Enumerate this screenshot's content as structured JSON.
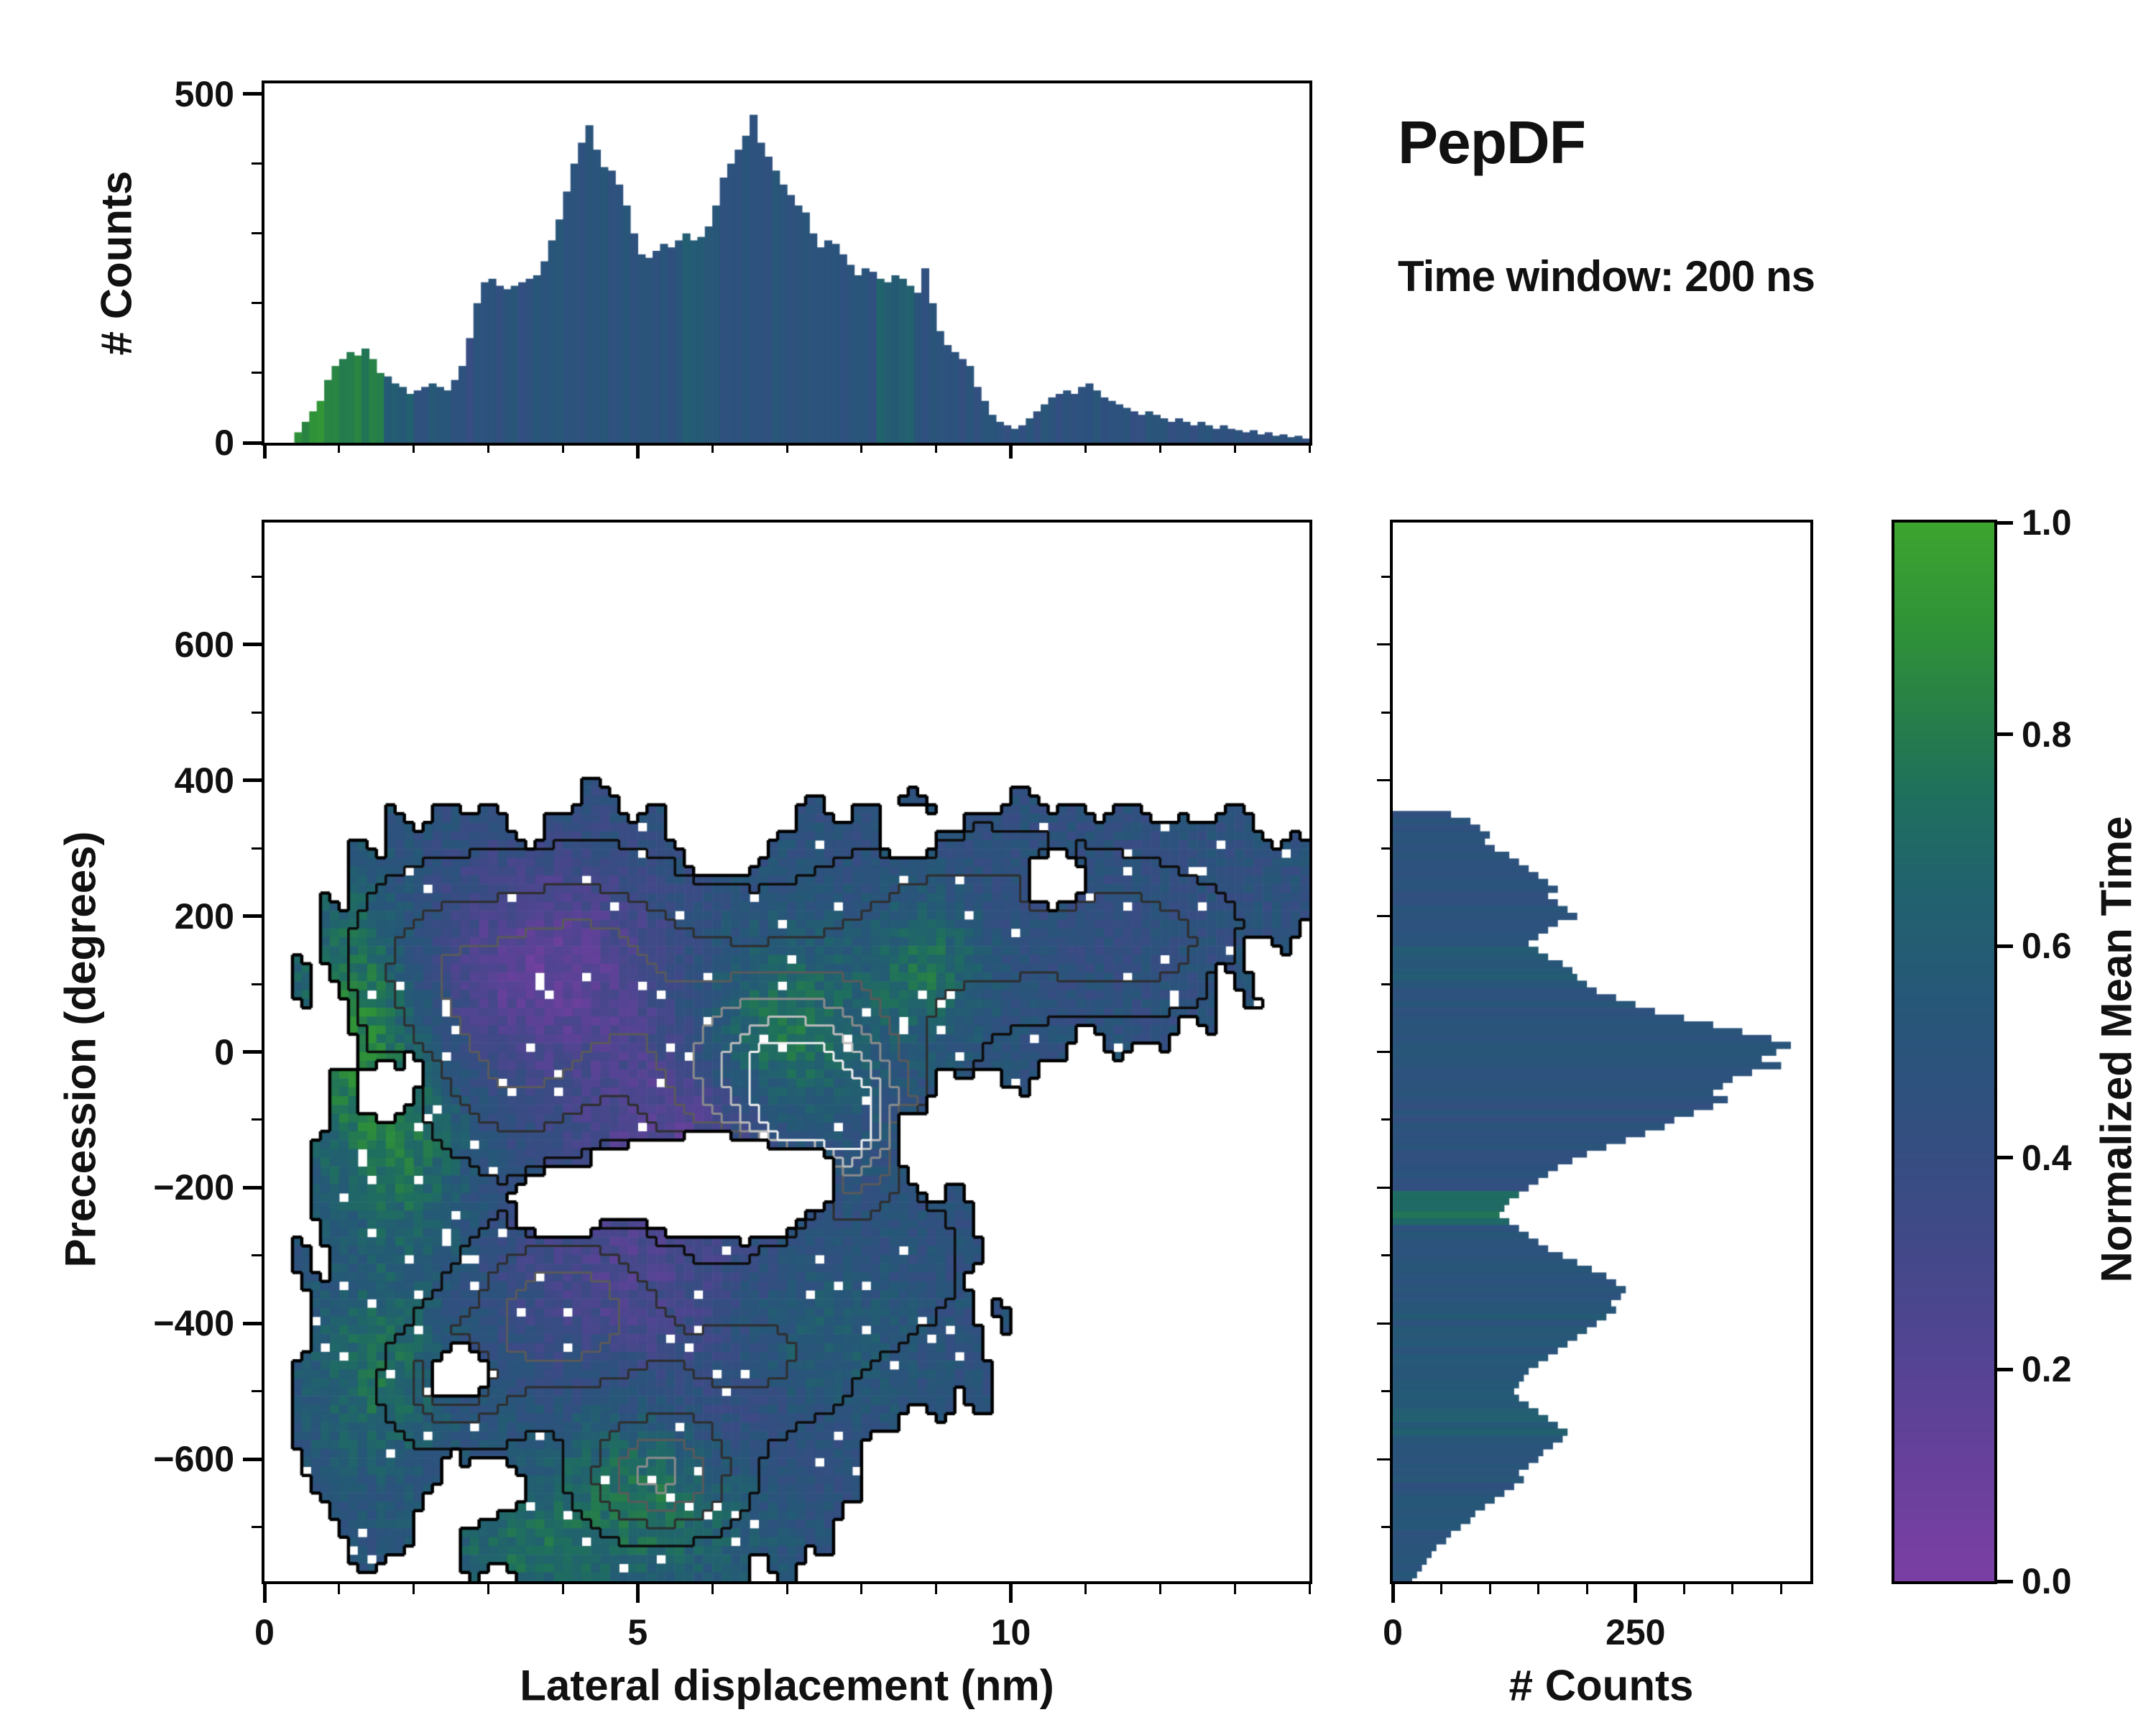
{
  "figure": {
    "title": "PepDF",
    "subtitle": "Time window: 200 ns",
    "background": "#ffffff"
  },
  "colormap": {
    "label": "Normalized Mean Time",
    "stops": [
      {
        "t": 0.0,
        "color": "#7B3FA4"
      },
      {
        "t": 0.1,
        "color": "#69409C"
      },
      {
        "t": 0.22,
        "color": "#524492"
      },
      {
        "t": 0.34,
        "color": "#3E4A86"
      },
      {
        "t": 0.46,
        "color": "#2E517E"
      },
      {
        "t": 0.56,
        "color": "#265877"
      },
      {
        "t": 0.66,
        "color": "#21636D"
      },
      {
        "t": 0.74,
        "color": "#1F6F5E"
      },
      {
        "t": 0.82,
        "color": "#277F48"
      },
      {
        "t": 0.9,
        "color": "#2F9238"
      },
      {
        "t": 1.0,
        "color": "#3DA42F"
      }
    ],
    "range": [
      0,
      1
    ],
    "ticks": [
      {
        "v": 0.0,
        "l": "0.0"
      },
      {
        "v": 0.2,
        "l": "0.2"
      },
      {
        "v": 0.4,
        "l": "0.4"
      },
      {
        "v": 0.6,
        "l": "0.6"
      },
      {
        "v": 0.8,
        "l": "0.8"
      },
      {
        "v": 1.0,
        "l": "1.0"
      }
    ]
  },
  "chart_data": [
    {
      "type": "bar",
      "id": "top_marginal_histogram",
      "ylabel": "# Counts",
      "xlim": [
        0,
        14
      ],
      "ylim": [
        0,
        515
      ],
      "yticks": [
        {
          "v": 0,
          "l": "0"
        },
        {
          "v": 500,
          "l": "500"
        }
      ],
      "y_minor_step": 100,
      "x_start": 0.0,
      "bin_width": 0.1,
      "values": [
        0,
        0,
        0,
        0,
        15,
        30,
        45,
        60,
        90,
        110,
        120,
        130,
        125,
        135,
        120,
        100,
        95,
        85,
        80,
        70,
        75,
        80,
        85,
        80,
        75,
        90,
        110,
        150,
        200,
        230,
        235,
        225,
        220,
        225,
        230,
        235,
        240,
        260,
        290,
        320,
        360,
        400,
        430,
        455,
        420,
        395,
        390,
        370,
        340,
        300,
        270,
        265,
        275,
        285,
        280,
        290,
        300,
        290,
        295,
        310,
        340,
        380,
        400,
        420,
        440,
        470,
        430,
        410,
        390,
        370,
        355,
        340,
        330,
        300,
        280,
        290,
        285,
        270,
        255,
        240,
        250,
        245,
        235,
        230,
        240,
        235,
        225,
        215,
        250,
        200,
        160,
        140,
        130,
        120,
        110,
        80,
        60,
        40,
        30,
        25,
        20,
        25,
        35,
        45,
        55,
        65,
        70,
        75,
        70,
        80,
        85,
        75,
        65,
        60,
        55,
        50,
        45,
        40,
        45,
        40,
        35,
        30,
        35,
        30,
        25,
        30,
        25,
        20,
        25,
        20,
        18,
        15,
        18,
        12,
        15,
        10,
        12,
        8,
        10,
        6
      ],
      "color_value_segments": [
        {
          "from": 0.0,
          "to": 0.8,
          "v": 0.88
        },
        {
          "from": 0.8,
          "to": 1.6,
          "v": 0.8
        },
        {
          "from": 1.6,
          "to": 2.05,
          "v": 0.62
        },
        {
          "from": 2.05,
          "to": 2.6,
          "v": 0.52
        },
        {
          "from": 2.6,
          "to": 3.15,
          "v": 0.43
        },
        {
          "from": 3.15,
          "to": 5.6,
          "v": 0.48
        },
        {
          "from": 5.6,
          "to": 6.1,
          "v": 0.56
        },
        {
          "from": 6.1,
          "to": 8.2,
          "v": 0.48
        },
        {
          "from": 8.2,
          "to": 8.7,
          "v": 0.6
        },
        {
          "from": 8.7,
          "to": 14.2,
          "v": 0.47
        }
      ],
      "color_jitter": 0.06
    },
    {
      "type": "heatmap",
      "id": "joint_2d_histogram",
      "xlabel": "Lateral displacement (nm)",
      "ylabel": "Precession (degrees)",
      "color_encodes": "Normalized Mean Time",
      "xlim": [
        0,
        14
      ],
      "ylim": [
        -780,
        780
      ],
      "xticks": [
        {
          "v": 0,
          "l": "0"
        },
        {
          "v": 5,
          "l": "5"
        },
        {
          "v": 10,
          "l": "10"
        }
      ],
      "x_minor_step": 1,
      "yticks": [
        {
          "v": 600,
          "l": "600"
        },
        {
          "v": 400,
          "l": "400"
        },
        {
          "v": 200,
          "l": "200"
        },
        {
          "v": 0,
          "l": "0"
        },
        {
          "v": -200,
          "l": "−200"
        },
        {
          "v": -400,
          "l": "−400"
        },
        {
          "v": -600,
          "l": "−600"
        }
      ],
      "y_minor_step": 100,
      "grid": {
        "cols": 112,
        "rows": 120
      },
      "seed": 12345,
      "base_value": 0.48,
      "region_blobs": [
        [
          4.5,
          100,
          3.9,
          290
        ],
        [
          9.3,
          170,
          4.6,
          220
        ],
        [
          12.1,
          240,
          2.3,
          130
        ],
        [
          2.8,
          150,
          2.3,
          230
        ],
        [
          6.6,
          40,
          3.2,
          260
        ],
        [
          5.0,
          -430,
          4.2,
          370
        ],
        [
          2.2,
          -300,
          1.9,
          340
        ],
        [
          7.5,
          -360,
          2.6,
          250
        ],
        [
          4.9,
          -690,
          2.6,
          160
        ],
        [
          1.5,
          -500,
          1.2,
          260
        ]
      ],
      "holes": [
        [
          6.0,
          -205,
          2.1,
          95
        ],
        [
          4.1,
          -225,
          0.9,
          65
        ],
        [
          6.1,
          330,
          0.8,
          80
        ],
        [
          2.6,
          -470,
          0.5,
          55
        ],
        [
          10.6,
          250,
          0.5,
          55
        ],
        [
          1.6,
          -60,
          0.45,
          45
        ],
        [
          8.6,
          320,
          0.5,
          50
        ],
        [
          3.1,
          -640,
          0.5,
          50
        ]
      ],
      "value_bumps": [
        [
          3.8,
          120,
          -0.34,
          1.7,
          170
        ],
        [
          5.6,
          -110,
          -0.26,
          1.3,
          130
        ],
        [
          4.8,
          -330,
          -0.22,
          1.6,
          160
        ],
        [
          6.4,
          -560,
          -0.15,
          1.2,
          110
        ],
        [
          1.2,
          40,
          0.38,
          0.9,
          210
        ],
        [
          2.0,
          -160,
          0.22,
          0.8,
          160
        ],
        [
          6.9,
          30,
          0.32,
          1.1,
          140
        ],
        [
          8.9,
          120,
          0.28,
          0.8,
          100
        ],
        [
          5.2,
          -650,
          0.3,
          1.5,
          130
        ],
        [
          1.5,
          -480,
          0.26,
          0.9,
          140
        ],
        [
          7.4,
          -440,
          0.15,
          1.1,
          110
        ],
        [
          10.8,
          200,
          -0.04,
          2.6,
          160
        ],
        [
          3.3,
          -740,
          0.2,
          1.2,
          80
        ]
      ],
      "density_bumps": [
        [
          7.0,
          -30,
          0.8,
          1.6,
          150
        ],
        [
          7.7,
          -115,
          0.5,
          0.9,
          85
        ],
        [
          4.2,
          130,
          0.42,
          1.6,
          140
        ],
        [
          3.4,
          -40,
          0.3,
          1.1,
          120
        ],
        [
          4.0,
          -385,
          0.5,
          1.2,
          115
        ],
        [
          5.3,
          -625,
          0.55,
          0.9,
          75
        ],
        [
          2.5,
          -495,
          0.32,
          0.8,
          85
        ],
        [
          9.5,
          190,
          0.32,
          1.9,
          120
        ],
        [
          11.8,
          160,
          0.26,
          1.2,
          90
        ],
        [
          6.5,
          -450,
          0.26,
          1.3,
          105
        ],
        [
          2.2,
          120,
          0.24,
          1.0,
          130
        ],
        [
          8.3,
          -320,
          0.2,
          1.0,
          100
        ]
      ],
      "contour_levels": [
        {
          "t": 0.2,
          "color": "#0d0d0d",
          "w": 3.5
        },
        {
          "t": 0.34,
          "color": "#2e2e2e",
          "w": 3
        },
        {
          "t": 0.48,
          "color": "#5a5a5a",
          "w": 3
        },
        {
          "t": 0.62,
          "color": "#8c8c8c",
          "w": 3
        },
        {
          "t": 0.76,
          "color": "#bdbdbd",
          "w": 3
        },
        {
          "t": 0.88,
          "color": "#f0f0f0",
          "w": 3
        }
      ]
    },
    {
      "type": "bar",
      "id": "right_marginal_histogram",
      "orientation": "horizontal",
      "xlabel": "# Counts",
      "xlim": [
        0,
        430
      ],
      "ylim": [
        -780,
        780
      ],
      "xticks": [
        {
          "v": 0,
          "l": "0"
        },
        {
          "v": 250,
          "l": "250"
        }
      ],
      "x_minor_step": 50,
      "y_minor_step": 100,
      "y_start": 350,
      "bin_height": 10,
      "values": [
        60,
        80,
        90,
        100,
        95,
        105,
        120,
        130,
        140,
        150,
        160,
        170,
        160,
        170,
        180,
        190,
        170,
        160,
        150,
        140,
        150,
        160,
        175,
        185,
        190,
        200,
        210,
        230,
        250,
        270,
        300,
        330,
        360,
        390,
        410,
        395,
        380,
        400,
        370,
        350,
        340,
        330,
        345,
        330,
        310,
        290,
        280,
        260,
        240,
        220,
        200,
        185,
        170,
        160,
        150,
        140,
        130,
        120,
        115,
        110,
        120,
        130,
        140,
        150,
        160,
        175,
        190,
        205,
        220,
        230,
        240,
        235,
        225,
        230,
        220,
        210,
        200,
        190,
        180,
        170,
        160,
        150,
        140,
        135,
        130,
        125,
        130,
        140,
        150,
        160,
        170,
        180,
        175,
        165,
        155,
        150,
        140,
        130,
        135,
        125,
        115,
        105,
        95,
        85,
        80,
        70,
        60,
        55,
        45,
        40,
        35,
        30,
        25,
        20,
        15
      ],
      "color_value_segments": [
        {
          "from": 360,
          "to": 160,
          "v": 0.48
        },
        {
          "from": 160,
          "to": 95,
          "v": 0.58
        },
        {
          "from": 95,
          "to": -45,
          "v": 0.5
        },
        {
          "from": -45,
          "to": -205,
          "v": 0.47
        },
        {
          "from": -205,
          "to": -250,
          "v": 0.72
        },
        {
          "from": -250,
          "to": -380,
          "v": 0.5
        },
        {
          "from": -380,
          "to": -520,
          "v": 0.53
        },
        {
          "from": -520,
          "to": -565,
          "v": 0.6
        },
        {
          "from": -565,
          "to": -800,
          "v": 0.5
        }
      ],
      "color_jitter": 0.05
    }
  ]
}
